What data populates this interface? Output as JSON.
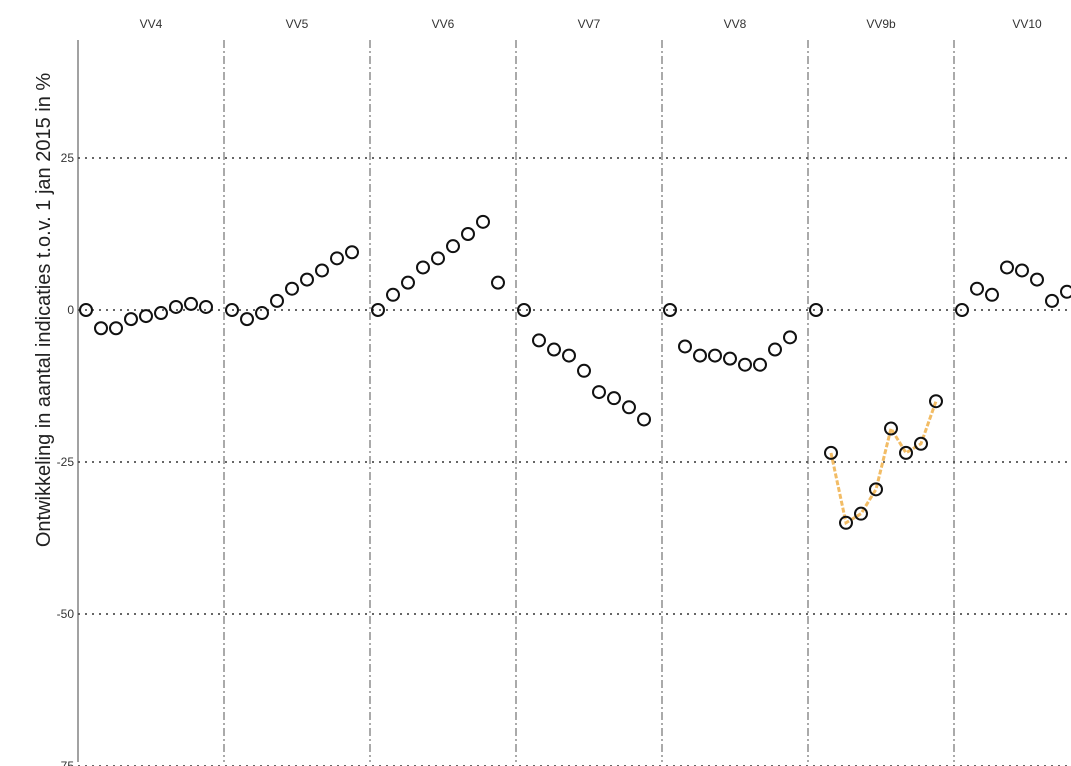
{
  "chart_data": {
    "type": "scatter",
    "ylabel": "Ontwikkeling in aantal indicaties t.o.v. 1 jan 2015 in %",
    "ylim": [
      -75,
      50
    ],
    "yticks": [
      -75,
      -50,
      -25,
      0,
      25
    ],
    "grid": true,
    "panels": [
      {
        "name": "VV4",
        "values": [
          0,
          -3,
          -3,
          -1.5,
          -1,
          -0.5,
          0.5,
          1,
          0.5
        ]
      },
      {
        "name": "VV5",
        "values": [
          0,
          -1.5,
          -0.5,
          1.5,
          3.5,
          5,
          6.5,
          8.5,
          9.5
        ]
      },
      {
        "name": "VV6",
        "values": [
          0,
          2.5,
          4.5,
          7,
          8.5,
          10.5,
          12.5,
          14.5,
          4.5
        ]
      },
      {
        "name": "VV7",
        "values": [
          0,
          -5,
          -6.5,
          -7.5,
          -10,
          -13.5,
          -14.5,
          -16,
          -18
        ]
      },
      {
        "name": "VV8",
        "values": [
          0,
          -6,
          -7.5,
          -7.5,
          -8,
          -9,
          -9,
          -6.5,
          -4.5
        ]
      },
      {
        "name": "VV9b",
        "values": [
          0,
          -23.5,
          -35,
          -33.5,
          -29.5,
          -19.5,
          -23.5,
          -22,
          -15
        ],
        "line_color": "#f0b04a"
      },
      {
        "name": "VV10",
        "values": [
          0,
          3.5,
          2.5,
          7,
          6.5,
          5,
          1.5,
          3
        ]
      }
    ]
  }
}
